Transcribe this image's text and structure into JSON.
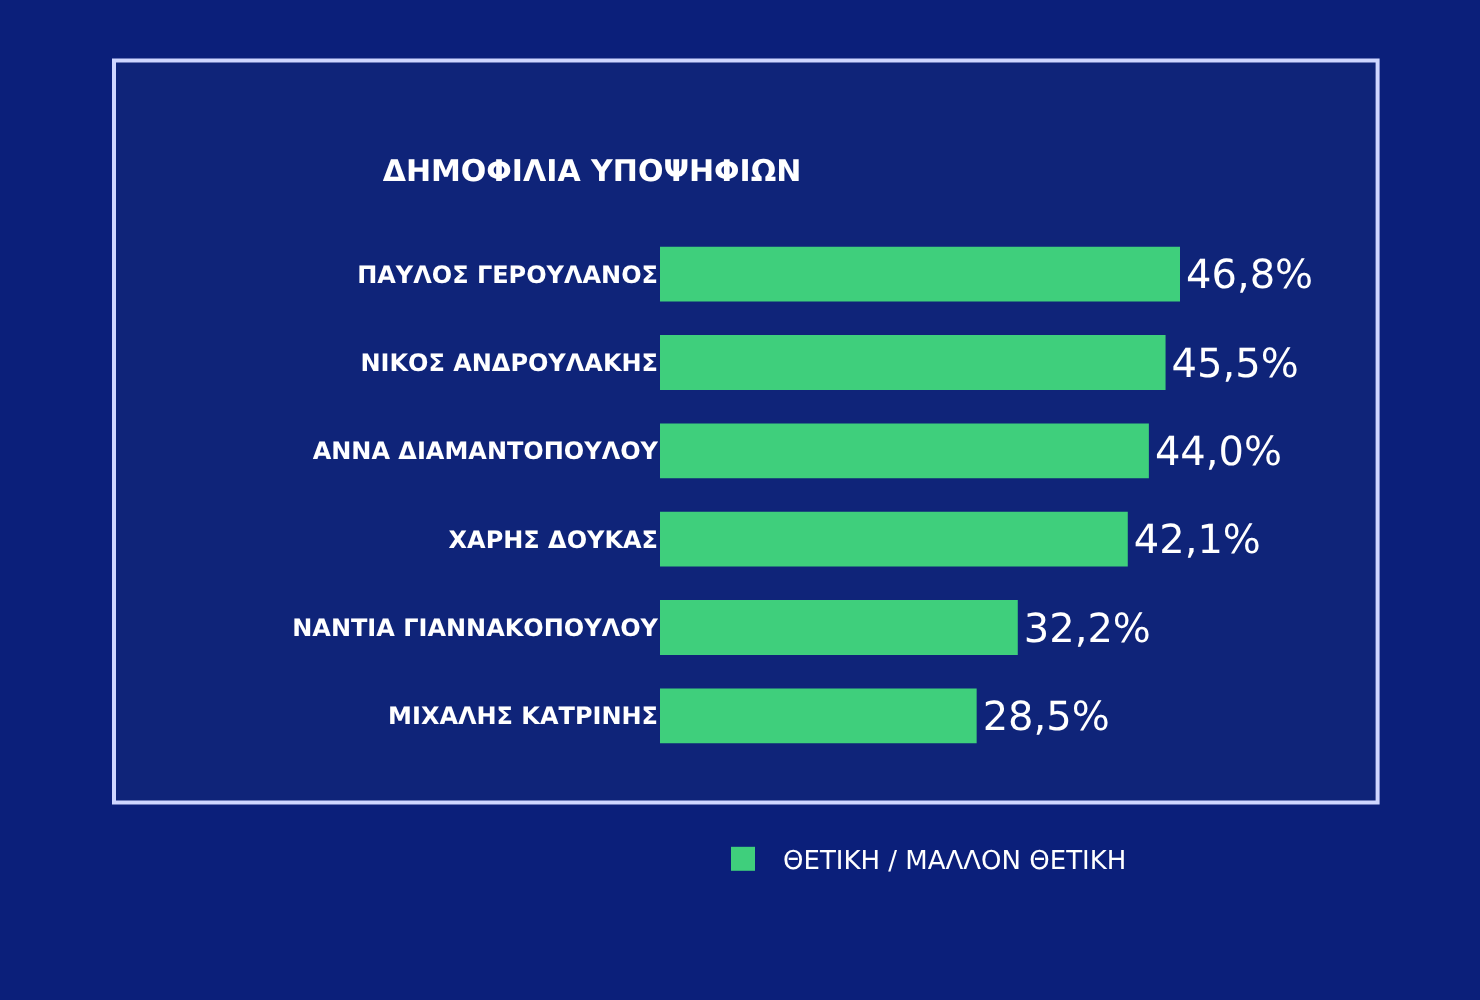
{
  "chart_data": {
    "type": "bar",
    "orientation": "horizontal",
    "title": "ΔΗΜΟΦΙΛΙΑ ΥΠΟΨΗΦΙΩΝ",
    "categories": [
      "ΠΑΥΛΟΣ ΓΕΡΟΥΛΑΝΟΣ",
      "ΝΙΚΟΣ ΑΝΔΡΟΥΛΑΚΗΣ",
      "ΑΝΝΑ ΔΙΑΜΑΝΤΟΠΟΥΛΟΥ",
      "ΧΑΡΗΣ ΔΟΥΚΑΣ",
      "ΝΑΝΤΙΑ ΓΙΑΝΝΑΚΟΠΟΥΛΟΥ",
      "ΜΙΧΑΛΗΣ ΚΑΤΡΙΝΗΣ"
    ],
    "series": [
      {
        "name": "ΘΕΤΙΚΗ / ΜΑΛΛΟΝ ΘΕΤΙΚΗ",
        "color": "#3fcf7c",
        "values": [
          46.8,
          45.5,
          44.0,
          42.1,
          32.2,
          28.5
        ],
        "value_labels": [
          "46,8%",
          "45,5%",
          "44,0%",
          "42,1%",
          "32,2%",
          "28,5%"
        ]
      }
    ],
    "legend": "bottom",
    "grid": false
  }
}
